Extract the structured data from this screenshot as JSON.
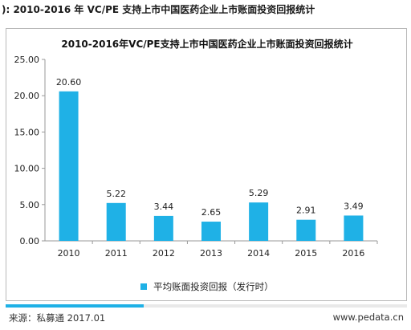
{
  "caption": "): 2010-2016 年 VC/PE 支持上市中国医药企业上市账面投资回报统计",
  "chart_data": {
    "type": "bar",
    "title": "2010-2016年VC/PE支持上市中国医药企业上市账面投资回报统计",
    "categories": [
      "2010",
      "2011",
      "2012",
      "2013",
      "2014",
      "2015",
      "2016"
    ],
    "series": [
      {
        "name": "平均账面投资回报（发行时）",
        "values": [
          20.6,
          5.22,
          3.44,
          2.65,
          5.29,
          2.91,
          3.49
        ]
      }
    ],
    "data_labels": [
      "20.60",
      "5.22",
      "3.44",
      "2.65",
      "5.29",
      "2.91",
      "3.49"
    ],
    "ylim": [
      0,
      25
    ],
    "yticks": [
      "0.00",
      "5.00",
      "10.00",
      "15.00",
      "20.00",
      "25.00"
    ],
    "xlabel": "",
    "ylabel": "",
    "grid": false,
    "legend_position": "bottom",
    "bar_color": "#1fb1e6"
  },
  "footer": {
    "source": "来源：私募通 2017.01",
    "site": "www.pedata.cn"
  }
}
